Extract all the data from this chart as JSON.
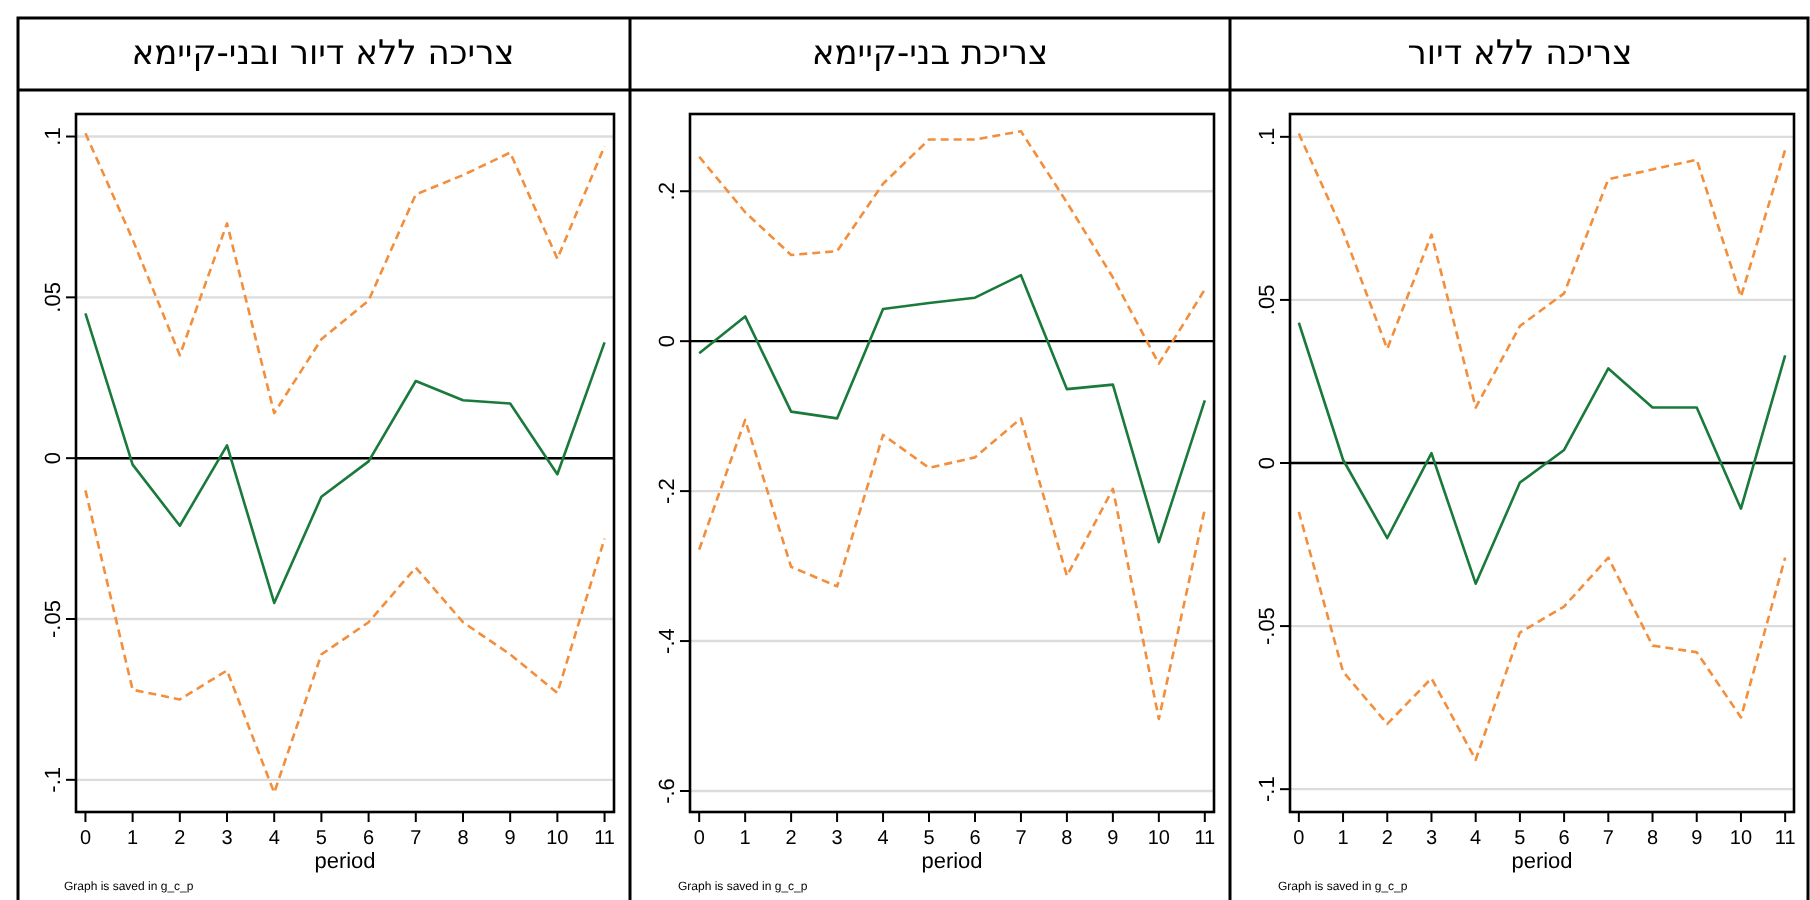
{
  "chart_data": [
    {
      "type": "line",
      "title": "צריכה ללא דיור ובני-קיימא",
      "xlabel": "period",
      "x": [
        0,
        1,
        2,
        3,
        4,
        5,
        6,
        7,
        8,
        9,
        10,
        11
      ],
      "xlim": [
        -0.2,
        11.2
      ],
      "xticks": [
        0,
        1,
        2,
        3,
        4,
        5,
        6,
        7,
        8,
        9,
        10,
        11
      ],
      "ylim": [
        -0.11,
        0.107
      ],
      "yticks": [
        {
          "value": -0.1,
          "label": "-.1"
        },
        {
          "value": -0.05,
          "label": "-.05"
        },
        {
          "value": 0,
          "label": "0"
        },
        {
          "value": 0.05,
          "label": ".05"
        },
        {
          "value": 0.1,
          "label": ".1"
        }
      ],
      "grid": "y",
      "marker": "none",
      "annotations": [
        "Graph is saved in g_c_p"
      ],
      "ref_lines": [
        {
          "axis": "y",
          "value": 0,
          "color": "#000000"
        }
      ],
      "series": [
        {
          "color": "#f28e3c",
          "line_style": "dashed",
          "values": [
            0.101,
            0.068,
            0.032,
            0.073,
            0.014,
            0.037,
            0.049,
            0.082,
            0.088,
            0.095,
            0.062,
            0.097
          ]
        },
        {
          "color": "#1a7a3c",
          "line_style": "solid",
          "values": [
            0.045,
            -0.002,
            -0.021,
            0.004,
            -0.045,
            -0.012,
            -0.001,
            0.024,
            0.018,
            0.017,
            -0.005,
            0.036
          ]
        },
        {
          "color": "#f28e3c",
          "line_style": "dashed",
          "values": [
            -0.01,
            -0.072,
            -0.075,
            -0.066,
            -0.104,
            -0.061,
            -0.051,
            -0.034,
            -0.051,
            -0.061,
            -0.073,
            -0.025
          ]
        }
      ]
    },
    {
      "type": "line",
      "title": "צריכת בני-קיימא",
      "xlabel": "period",
      "x": [
        0,
        1,
        2,
        3,
        4,
        5,
        6,
        7,
        8,
        9,
        10,
        11
      ],
      "xlim": [
        -0.2,
        11.2
      ],
      "xticks": [
        0,
        1,
        2,
        3,
        4,
        5,
        6,
        7,
        8,
        9,
        10,
        11
      ],
      "ylim": [
        -0.628,
        0.303
      ],
      "yticks": [
        {
          "value": -0.6,
          "label": "-.6"
        },
        {
          "value": -0.4,
          "label": "-.4"
        },
        {
          "value": -0.2,
          "label": "-.2"
        },
        {
          "value": 0,
          "label": "0"
        },
        {
          "value": 0.2,
          "label": ".2"
        }
      ],
      "grid": "y",
      "marker": "none",
      "annotations": [
        "Graph is saved in g_c_p"
      ],
      "ref_lines": [
        {
          "axis": "y",
          "value": 0,
          "color": "#000000"
        }
      ],
      "series": [
        {
          "color": "#f28e3c",
          "line_style": "dashed",
          "values": [
            0.246,
            0.172,
            0.115,
            0.12,
            0.21,
            0.269,
            0.269,
            0.28,
            0.185,
            0.085,
            -0.03,
            0.069
          ]
        },
        {
          "color": "#1a7a3c",
          "line_style": "solid",
          "values": [
            -0.016,
            0.033,
            -0.094,
            -0.103,
            0.043,
            0.051,
            0.058,
            0.088,
            -0.064,
            -0.058,
            -0.268,
            -0.079
          ]
        },
        {
          "color": "#f28e3c",
          "line_style": "dashed",
          "values": [
            -0.278,
            -0.105,
            -0.301,
            -0.327,
            -0.125,
            -0.169,
            -0.155,
            -0.103,
            -0.313,
            -0.197,
            -0.504,
            -0.224
          ]
        }
      ]
    },
    {
      "type": "line",
      "title": "צריכה ללא דיור",
      "xlabel": "period",
      "x": [
        0,
        1,
        2,
        3,
        4,
        5,
        6,
        7,
        8,
        9,
        10,
        11
      ],
      "xlim": [
        -0.2,
        11.2
      ],
      "xticks": [
        0,
        1,
        2,
        3,
        4,
        5,
        6,
        7,
        8,
        9,
        10,
        11
      ],
      "ylim": [
        -0.107,
        0.107
      ],
      "yticks": [
        {
          "value": -0.1,
          "label": "-.1"
        },
        {
          "value": -0.05,
          "label": "-.05"
        },
        {
          "value": 0,
          "label": "0"
        },
        {
          "value": 0.05,
          "label": ".05"
        },
        {
          "value": 0.1,
          "label": ".1"
        }
      ],
      "grid": "y",
      "marker": "none",
      "annotations": [
        "Graph is saved in g_c_p"
      ],
      "ref_lines": [
        {
          "axis": "y",
          "value": 0,
          "color": "#000000"
        }
      ],
      "series": [
        {
          "color": "#f28e3c",
          "line_style": "dashed",
          "values": [
            0.101,
            0.071,
            0.035,
            0.07,
            0.017,
            0.042,
            0.052,
            0.087,
            0.09,
            0.093,
            0.051,
            0.096
          ]
        },
        {
          "color": "#1a7a3c",
          "line_style": "solid",
          "values": [
            0.043,
            0.001,
            -0.023,
            0.003,
            -0.037,
            -0.006,
            0.004,
            0.029,
            0.017,
            0.017,
            -0.014,
            0.033
          ]
        },
        {
          "color": "#f28e3c",
          "line_style": "dashed",
          "values": [
            -0.015,
            -0.064,
            -0.08,
            -0.066,
            -0.091,
            -0.052,
            -0.044,
            -0.029,
            -0.056,
            -0.058,
            -0.078,
            -0.029
          ]
        }
      ]
    }
  ]
}
